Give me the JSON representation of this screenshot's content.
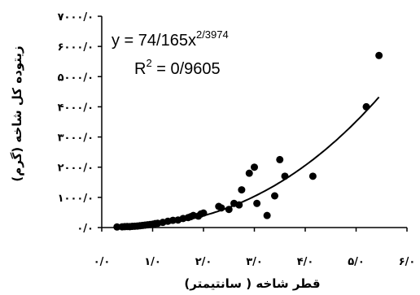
{
  "chart_data": {
    "type": "scatter",
    "title": "",
    "xlabel": "قطر شاخه ( سانتیمتر)",
    "ylabel": "زیتوده کل شاخه (گرم)",
    "xlim": [
      0,
      6
    ],
    "ylim": [
      0,
      7000
    ],
    "x_ticks": [
      "۰/۰",
      "۱/۰",
      "۲/۰",
      "۳/۰",
      "۴/۰",
      "۵/۰",
      "۶/۰"
    ],
    "y_ticks": [
      "۰/۰",
      "۱۰۰۰/۰",
      "۲۰۰۰/۰",
      "۳۰۰۰/۰",
      "۴۰۰۰/۰",
      "۵۰۰۰/۰",
      "۶۰۰۰/۰",
      "۷۰۰۰/۰"
    ],
    "grid": false,
    "equation": {
      "prefix": "y = 74/165x",
      "exponent": "2/3974",
      "r2_prefix": "R",
      "r2_exponent": "2",
      "r2_value": " = 0/9605"
    },
    "trendline": {
      "type": "power",
      "coefficient": 74.165,
      "exponent": 2.3974
    },
    "points": [
      {
        "x": 0.3,
        "y": 20
      },
      {
        "x": 0.4,
        "y": 25
      },
      {
        "x": 0.45,
        "y": 30
      },
      {
        "x": 0.5,
        "y": 35
      },
      {
        "x": 0.55,
        "y": 30
      },
      {
        "x": 0.6,
        "y": 40
      },
      {
        "x": 0.65,
        "y": 45
      },
      {
        "x": 0.7,
        "y": 50
      },
      {
        "x": 0.75,
        "y": 60
      },
      {
        "x": 0.8,
        "y": 70
      },
      {
        "x": 0.85,
        "y": 80
      },
      {
        "x": 0.9,
        "y": 90
      },
      {
        "x": 0.95,
        "y": 100
      },
      {
        "x": 1.0,
        "y": 110
      },
      {
        "x": 1.05,
        "y": 130
      },
      {
        "x": 1.1,
        "y": 140
      },
      {
        "x": 1.2,
        "y": 170
      },
      {
        "x": 1.3,
        "y": 210
      },
      {
        "x": 1.4,
        "y": 240
      },
      {
        "x": 1.5,
        "y": 250
      },
      {
        "x": 1.6,
        "y": 300
      },
      {
        "x": 1.7,
        "y": 330
      },
      {
        "x": 1.75,
        "y": 360
      },
      {
        "x": 1.8,
        "y": 400
      },
      {
        "x": 1.9,
        "y": 380
      },
      {
        "x": 1.95,
        "y": 450
      },
      {
        "x": 2.0,
        "y": 480
      },
      {
        "x": 2.3,
        "y": 700
      },
      {
        "x": 2.35,
        "y": 650
      },
      {
        "x": 2.5,
        "y": 600
      },
      {
        "x": 2.6,
        "y": 800
      },
      {
        "x": 2.7,
        "y": 750
      },
      {
        "x": 2.75,
        "y": 1250
      },
      {
        "x": 2.9,
        "y": 1800
      },
      {
        "x": 3.0,
        "y": 2000
      },
      {
        "x": 3.05,
        "y": 800
      },
      {
        "x": 3.25,
        "y": 400
      },
      {
        "x": 3.4,
        "y": 1050
      },
      {
        "x": 3.5,
        "y": 2250
      },
      {
        "x": 3.6,
        "y": 1700
      },
      {
        "x": 4.15,
        "y": 1700
      },
      {
        "x": 5.2,
        "y": 4000
      },
      {
        "x": 5.45,
        "y": 5700
      }
    ]
  }
}
